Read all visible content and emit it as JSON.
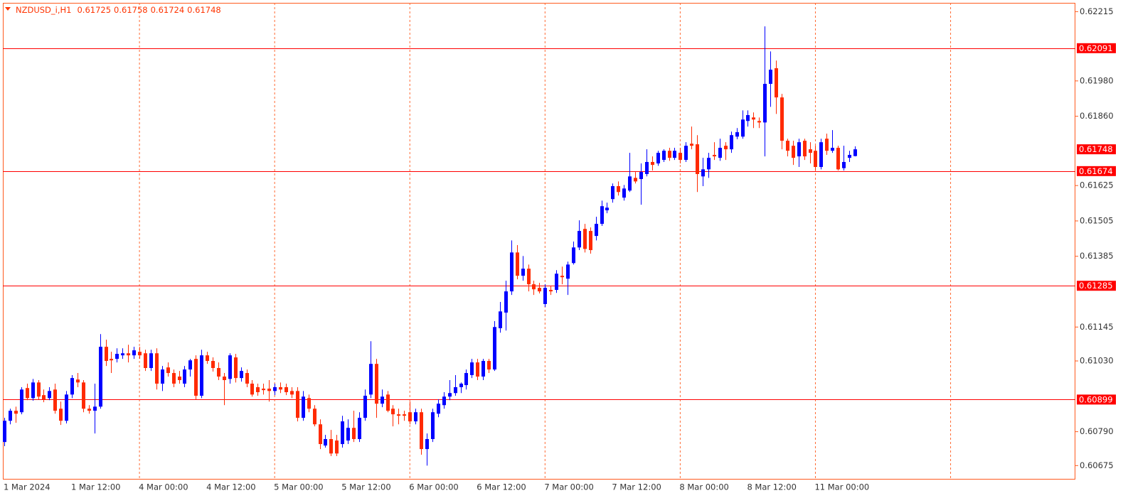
{
  "chart_data": {
    "type": "candlestick",
    "title": "NZDUSD_i,H1",
    "categories": [
      "1 Mar 2024",
      null,
      null,
      null,
      null,
      null,
      null,
      null,
      null,
      null,
      null,
      null,
      "1 Mar 12:00",
      null,
      null,
      null,
      null,
      null,
      null,
      null,
      null,
      null,
      null,
      null,
      "4 Mar 00:00",
      null,
      null,
      null,
      null,
      null,
      null,
      null,
      null,
      null,
      null,
      null,
      "4 Mar 12:00",
      null,
      null,
      null,
      null,
      null,
      null,
      null,
      null,
      null,
      null,
      null,
      "5 Mar 00:00",
      null,
      null,
      null,
      null,
      null,
      null,
      null,
      null,
      null,
      null,
      null,
      "5 Mar 12:00",
      null,
      null,
      null,
      null,
      null,
      null,
      null,
      null,
      null,
      null,
      null,
      "6 Mar 00:00",
      null,
      null,
      null,
      null,
      null,
      null,
      null,
      null,
      null,
      null,
      null,
      "6 Mar 12:00",
      null,
      null,
      null,
      null,
      null,
      null,
      null,
      null,
      null,
      null,
      null,
      "7 Mar 00:00",
      null,
      null,
      null,
      null,
      null,
      null,
      null,
      null,
      null,
      null,
      null,
      "7 Mar 12:00",
      null,
      null,
      null,
      null,
      null,
      null,
      null,
      null,
      null,
      null,
      null,
      "8 Mar 00:00",
      null,
      null,
      null,
      null,
      null,
      null,
      null,
      null,
      null,
      null,
      null,
      "8 Mar 12:00",
      null,
      null,
      null,
      null,
      null,
      null,
      null,
      null,
      null,
      null,
      null,
      "11 Mar 00:00",
      null,
      null,
      null,
      null,
      null,
      null,
      null
    ],
    "open": [
      0.60755,
      0.60827,
      0.60861,
      0.60856,
      0.60938,
      0.60904,
      0.60957,
      0.60914,
      0.60904,
      0.60933,
      0.60868,
      0.60827,
      0.60916,
      0.60967,
      0.60957,
      0.60868,
      0.60861,
      0.60875,
      0.61078,
      0.61037,
      0.61037,
      0.61049,
      0.61056,
      0.61049,
      0.61061,
      0.61056,
      0.61006,
      0.61056,
      0.60953,
      0.61008,
      0.60989,
      0.60977,
      0.60953,
      0.61001,
      0.61037,
      0.60912,
      0.61049,
      0.6103,
      0.61006,
      0.60977,
      0.60969,
      0.61042,
      0.60972,
      0.60989,
      0.60953,
      0.60941,
      0.60936,
      0.60936,
      0.60928,
      0.60941,
      0.60941,
      0.60928,
      0.60928,
      0.60837,
      0.60904,
      0.60868,
      0.60815,
      0.60743,
      0.60765,
      0.6076,
      0.60748,
      0.6076,
      0.60803,
      0.60765,
      0.60837,
      0.60916,
      0.6102,
      0.60885,
      0.60916,
      0.60868,
      0.60849,
      0.60849,
      0.60856,
      0.60825,
      0.60856,
      0.60731,
      0.60765,
      0.60851,
      0.6088,
      0.60909,
      0.60921,
      0.60941,
      0.60948,
      0.60982,
      0.61025,
      0.60977,
      0.6103,
      0.61001,
      0.61141,
      0.61194,
      0.61266,
      0.61398,
      0.61319,
      0.61343,
      0.6129,
      0.61278,
      0.61223,
      0.61271,
      0.61271,
      0.61319,
      0.61309,
      0.61362,
      0.61415,
      0.61478,
      0.61471,
      0.61454,
      0.61495,
      0.61541,
      0.61579,
      0.61623,
      0.61584,
      0.61608,
      0.61651,
      0.61647,
      0.61664,
      0.61705,
      0.617,
      0.61712,
      0.61743,
      0.61719,
      0.61736,
      0.61712,
      0.61767,
      0.61765,
      0.61656,
      0.6168,
      0.61729,
      0.61719,
      0.6176,
      0.61748,
      0.61791,
      0.61791,
      0.61844,
      0.61856,
      0.61844,
      0.61839,
      0.6197,
      0.62023,
      0.61924,
      0.61777,
      0.6176,
      0.61724,
      0.61777,
      0.61748,
      0.61743,
      0.61688,
      0.61784,
      0.61743,
      0.61753,
      0.61684,
      0.61719,
      0.61725
    ],
    "high": [
      0.60837,
      0.60868,
      0.60875,
      0.60941,
      0.60953,
      0.60969,
      0.60965,
      0.60933,
      0.60941,
      0.60953,
      0.60892,
      0.60928,
      0.60982,
      0.60989,
      0.60965,
      0.6088,
      0.60953,
      0.61121,
      0.61102,
      0.61061,
      0.61073,
      0.61073,
      0.61085,
      0.61078,
      0.61078,
      0.61068,
      0.61068,
      0.61073,
      0.61013,
      0.61025,
      0.61001,
      0.60996,
      0.61013,
      0.61037,
      0.61049,
      0.61068,
      0.61061,
      0.61042,
      0.61025,
      0.60989,
      0.61056,
      0.61054,
      0.61008,
      0.61001,
      0.60965,
      0.60953,
      0.60953,
      0.60965,
      0.60953,
      0.60957,
      0.60953,
      0.60941,
      0.60941,
      0.60928,
      0.60916,
      0.6088,
      0.60832,
      0.60779,
      0.60796,
      0.60779,
      0.60844,
      0.60832,
      0.60861,
      0.60856,
      0.60933,
      0.61097,
      0.61037,
      0.60933,
      0.60928,
      0.6088,
      0.60868,
      0.60861,
      0.60892,
      0.60868,
      0.60868,
      0.60784,
      0.60868,
      0.609,
      0.60924,
      0.60965,
      0.60982,
      0.60957,
      0.61001,
      0.61037,
      0.61037,
      0.61037,
      0.61037,
      0.61165,
      0.6123,
      0.61302,
      0.61439,
      0.61423,
      0.61386,
      0.61357,
      0.61302,
      0.61295,
      0.6129,
      0.61283,
      0.61338,
      0.6135,
      0.61367,
      0.61435,
      0.61507,
      0.61495,
      0.61483,
      0.61519,
      0.61574,
      0.61567,
      0.61632,
      0.61639,
      0.61627,
      0.61736,
      0.61671,
      0.617,
      0.61748,
      0.61724,
      0.61743,
      0.61748,
      0.61753,
      0.61753,
      0.61753,
      0.61772,
      0.61825,
      0.61796,
      0.61719,
      0.61736,
      0.61772,
      0.61784,
      0.61772,
      0.61808,
      0.6182,
      0.6188,
      0.6188,
      0.61873,
      0.61856,
      0.62165,
      0.6208,
      0.62049,
      0.61936,
      0.61784,
      0.61777,
      0.61784,
      0.61784,
      0.61772,
      0.6176,
      0.61784,
      0.61801,
      0.61813,
      0.6176,
      0.6176,
      0.61743,
      0.61758
    ],
    "low": [
      0.60741,
      0.60815,
      0.6082,
      0.60849,
      0.60897,
      0.60895,
      0.609,
      0.6089,
      0.60897,
      0.60851,
      0.60813,
      0.60818,
      0.60904,
      0.60941,
      0.60856,
      0.60851,
      0.60784,
      0.60868,
      0.61013,
      0.60989,
      0.61025,
      0.61037,
      0.61025,
      0.61037,
      0.61037,
      0.60996,
      0.60996,
      0.60933,
      0.60928,
      0.60977,
      0.60941,
      0.60953,
      0.60941,
      0.60977,
      0.609,
      0.60904,
      0.6102,
      0.60994,
      0.60965,
      0.6088,
      0.60953,
      0.60957,
      0.6096,
      0.60941,
      0.60909,
      0.60912,
      0.60916,
      0.60892,
      0.60914,
      0.60921,
      0.60914,
      0.60904,
      0.60825,
      0.60827,
      0.60856,
      0.60808,
      0.60731,
      0.60736,
      0.60707,
      0.60707,
      0.60736,
      0.60748,
      0.60755,
      0.60755,
      0.60827,
      0.60904,
      0.60837,
      0.60873,
      0.60856,
      0.60808,
      0.60815,
      0.60827,
      0.60815,
      0.60815,
      0.60712,
      0.60675,
      0.60755,
      0.60839,
      0.60868,
      0.60897,
      0.60912,
      0.60921,
      0.60933,
      0.60972,
      0.60965,
      0.60965,
      0.60989,
      0.60996,
      0.61126,
      0.61133,
      0.61254,
      0.61307,
      0.61302,
      0.61266,
      0.61254,
      0.61259,
      0.61213,
      0.61254,
      0.61261,
      0.6129,
      0.61254,
      0.61357,
      0.61406,
      0.61398,
      0.61394,
      0.61439,
      0.61488,
      0.61531,
      0.61567,
      0.61591,
      0.61574,
      0.61603,
      0.61632,
      0.6156,
      0.61656,
      0.61676,
      0.61692,
      0.61705,
      0.61709,
      0.61712,
      0.617,
      0.61705,
      0.61748,
      0.61603,
      0.61623,
      0.61651,
      0.61712,
      0.61709,
      0.61712,
      0.61736,
      0.61782,
      0.61784,
      0.61825,
      0.6182,
      0.6182,
      0.61724,
      0.61892,
      0.61868,
      0.61748,
      0.61724,
      0.61695,
      0.61688,
      0.61712,
      0.617,
      0.61676,
      0.6168,
      0.61729,
      0.61736,
      0.61676,
      0.61676,
      0.61705,
      0.61724
    ],
    "close": [
      0.60827,
      0.60861,
      0.60851,
      0.60933,
      0.60904,
      0.60957,
      0.60909,
      0.609,
      0.60928,
      0.60861,
      0.60827,
      0.60916,
      0.60972,
      0.60957,
      0.60868,
      0.60861,
      0.60875,
      0.61078,
      0.6103,
      0.61032,
      0.61054,
      0.61056,
      0.61049,
      0.61066,
      0.61049,
      0.61006,
      0.61056,
      0.60953,
      0.61001,
      0.60989,
      0.60953,
      0.60965,
      0.61001,
      0.61032,
      0.60912,
      0.61049,
      0.6103,
      0.61006,
      0.60977,
      0.60965,
      0.61049,
      0.60972,
      0.60996,
      0.60953,
      0.60916,
      0.60924,
      0.60931,
      0.60928,
      0.60941,
      0.60933,
      0.60924,
      0.60916,
      0.60837,
      0.60909,
      0.60868,
      0.60815,
      0.60748,
      0.60765,
      0.60716,
      0.60716,
      0.60825,
      0.60803,
      0.60765,
      0.60837,
      0.60912,
      0.6102,
      0.60885,
      0.60909,
      0.60861,
      0.60849,
      0.60844,
      0.60844,
      0.60825,
      0.60856,
      0.60731,
      0.60765,
      0.60856,
      0.60885,
      0.60909,
      0.60921,
      0.60941,
      0.60953,
      0.60989,
      0.61025,
      0.60977,
      0.6103,
      0.61001,
      0.61145,
      0.61198,
      0.61266,
      0.61398,
      0.61319,
      0.61343,
      0.6129,
      0.61273,
      0.61266,
      0.61278,
      0.61266,
      0.61326,
      0.61314,
      0.61357,
      0.61415,
      0.61471,
      0.6141,
      0.61406,
      0.61495,
      0.61555,
      0.6155,
      0.61623,
      0.61603,
      0.61615,
      0.61656,
      0.61639,
      0.61671,
      0.61705,
      0.61695,
      0.61736,
      0.61743,
      0.61719,
      0.61743,
      0.61712,
      0.6176,
      0.6176,
      0.61664,
      0.6168,
      0.61719,
      0.61724,
      0.61753,
      0.61748,
      0.61796,
      0.61806,
      0.61849,
      0.61864,
      0.61849,
      0.61839,
      0.6197,
      0.62018,
      0.61924,
      0.61777,
      0.61743,
      0.61719,
      0.61772,
      0.61724,
      0.61736,
      0.61688,
      0.61772,
      0.61743,
      0.61753,
      0.6168,
      0.61705,
      0.61729,
      0.61748
    ],
    "up_color": "#0000ff",
    "down_color": "#ff2a00",
    "ylim": [
      0.6063,
      0.6224
    ],
    "yticks": [
      0.62215,
      {
        "value": 0.6198,
        "label": "0.61980"
      },
      {
        "value": 0.6186,
        "label": "0.61860"
      },
      0.61625,
      0.61505,
      0.61385,
      0.61145,
      {
        "value": 0.6103,
        "label": "0.61030"
      },
      {
        "value": 0.6079,
        "label": "0.60790"
      },
      0.60675
    ],
    "levels": [
      0.62091,
      0.61674,
      0.61285,
      0.60899
    ],
    "level_color": "#ff0000",
    "grid": true
  }
}
